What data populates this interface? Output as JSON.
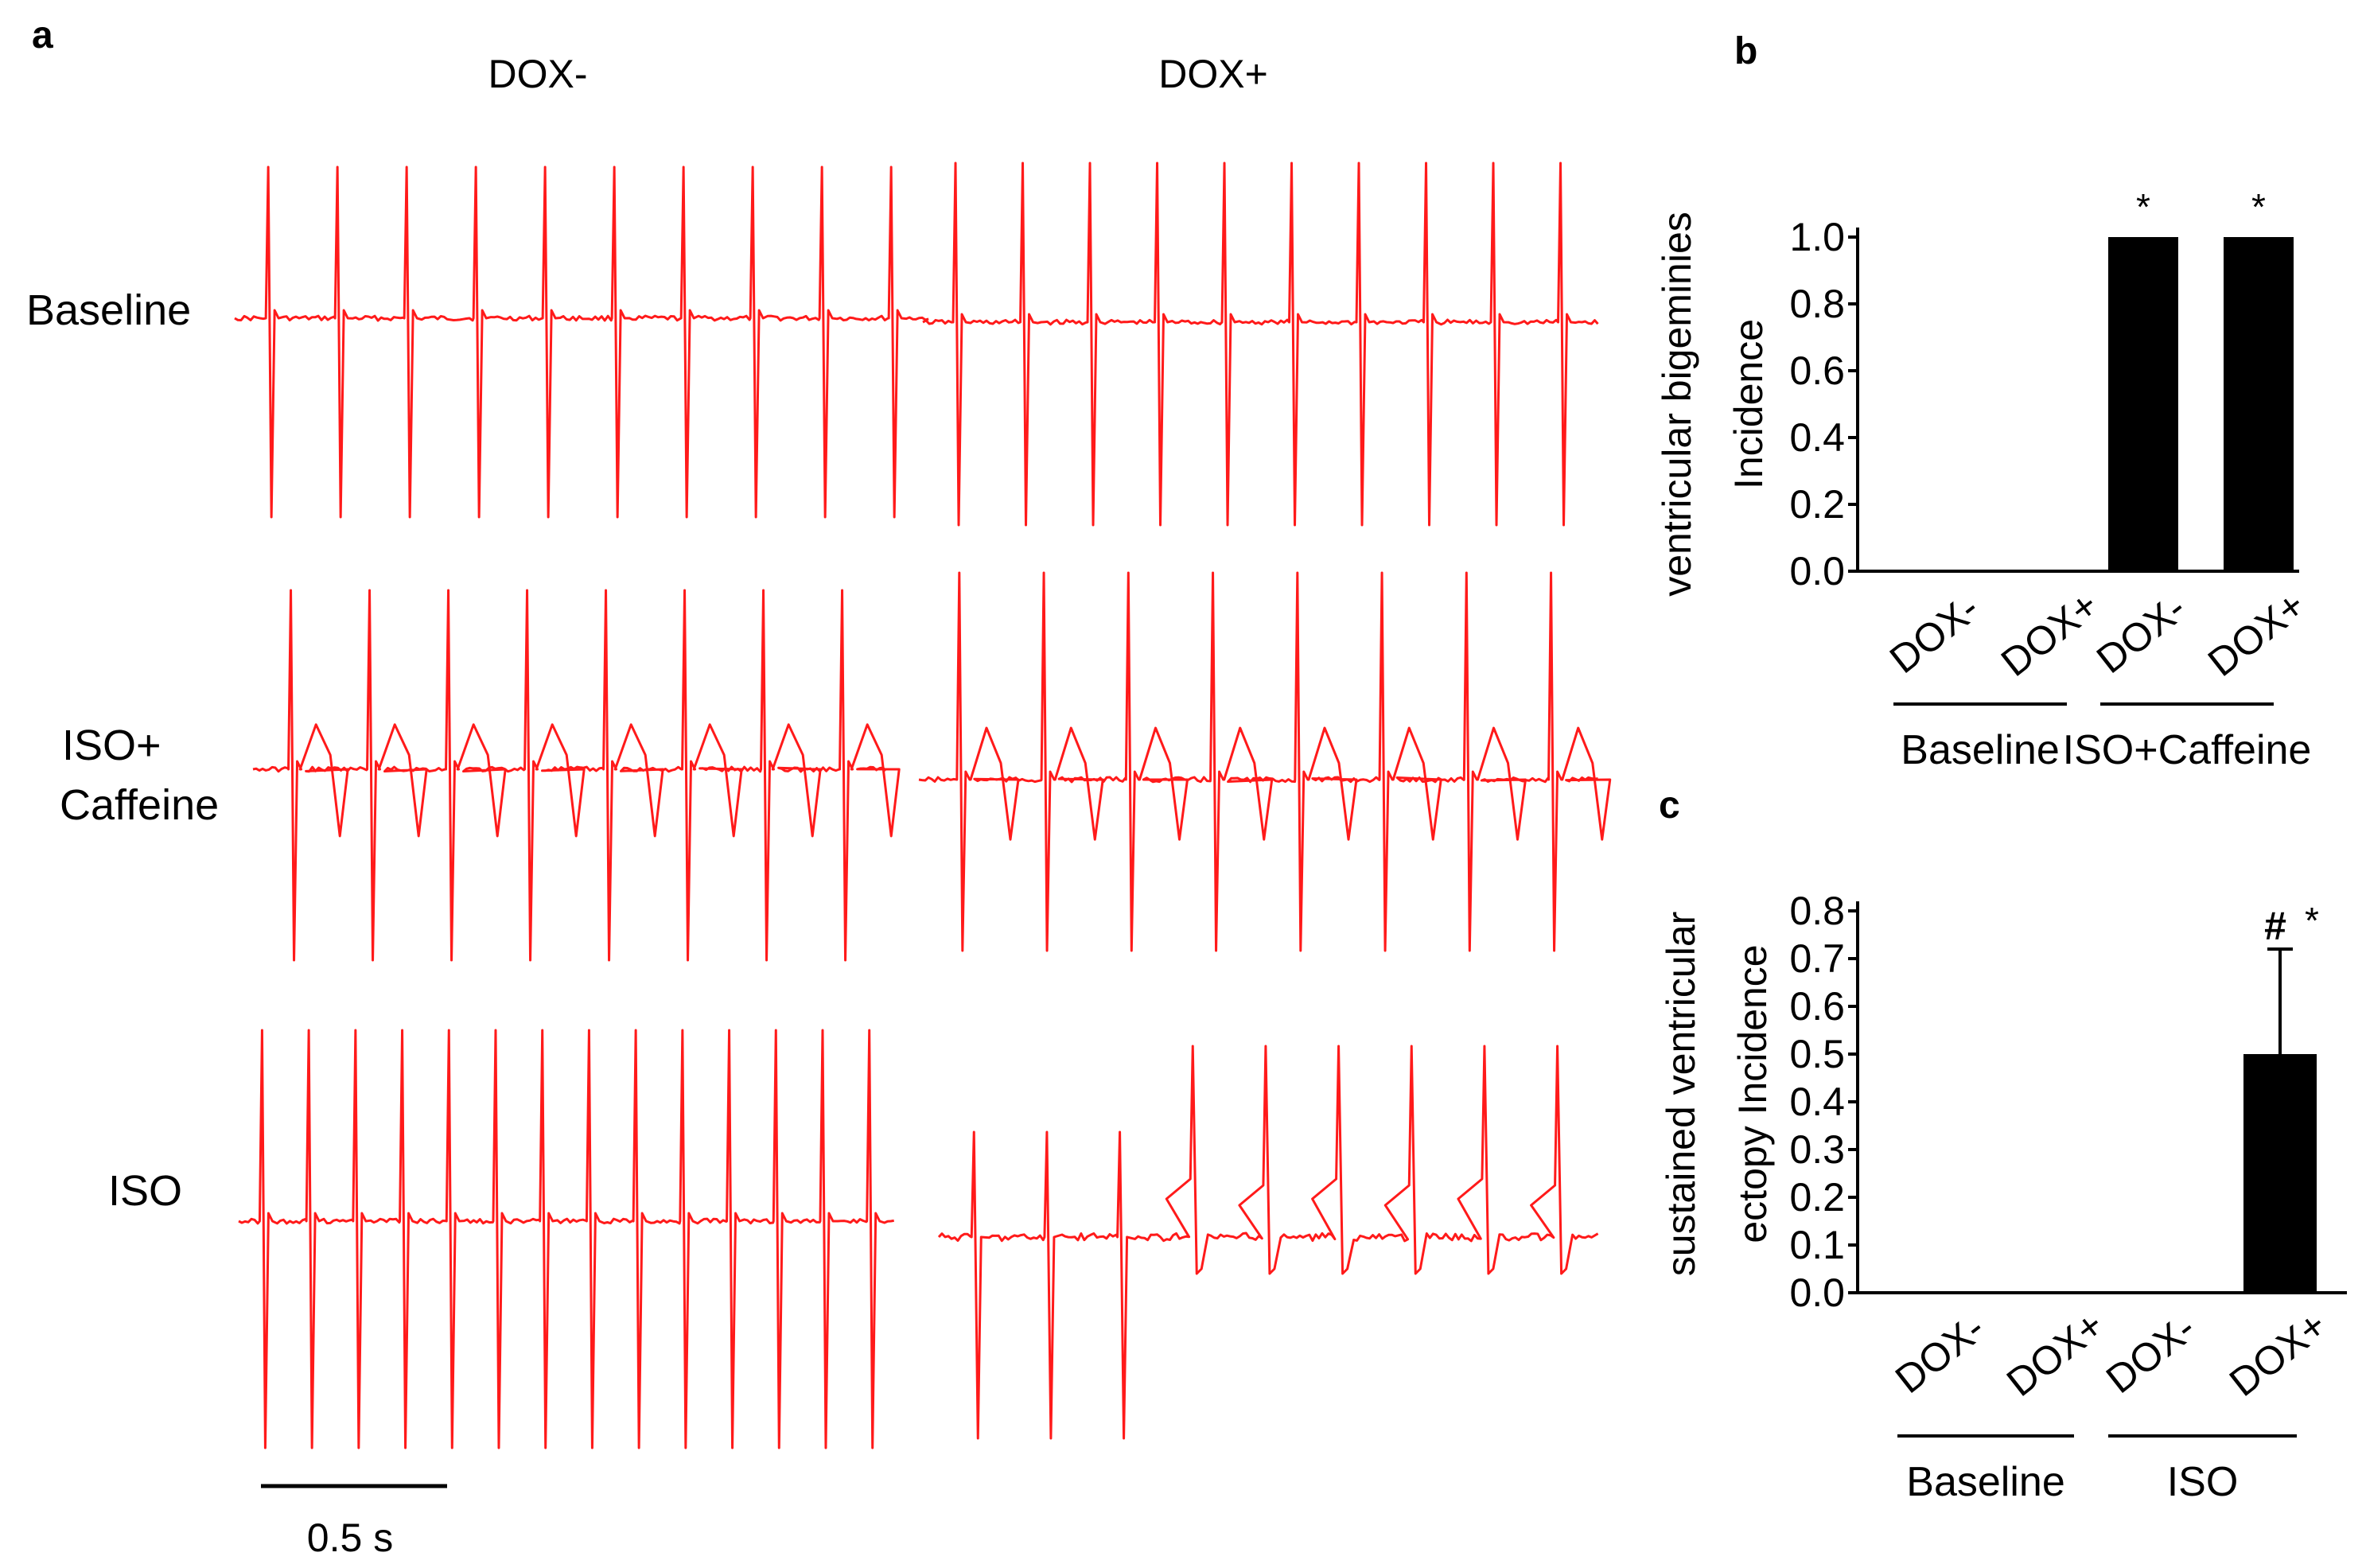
{
  "panel_a": {
    "letter": "a",
    "columns": [
      "DOX-",
      "DOX+"
    ],
    "rows": [
      {
        "label_lines": [
          "Baseline"
        ]
      },
      {
        "label_lines": [
          "ISO+",
          "Caffeine"
        ]
      },
      {
        "label_lines": [
          "ISO"
        ]
      }
    ],
    "scale_bar_label": "0.5 s",
    "trace_color": "#ff1a1a",
    "traces": [
      {
        "id": "baseline-dox-minus",
        "beats_per_window": 10,
        "style": "narrow"
      },
      {
        "id": "baseline-dox-plus",
        "beats_per_window": 10,
        "style": "narrow"
      },
      {
        "id": "iso-caffeine-dox-minus",
        "beats_per_window": 8,
        "style": "bigeminy"
      },
      {
        "id": "iso-caffeine-dox-plus",
        "beats_per_window": 8,
        "style": "bigeminy"
      },
      {
        "id": "iso-dox-minus",
        "beats_per_window": 14,
        "style": "narrow"
      },
      {
        "id": "iso-dox-plus",
        "beats_per_window": 9,
        "style": "ectopy"
      }
    ]
  },
  "chart_data": [
    {
      "panel": "b",
      "type": "bar",
      "title": "",
      "categories": [
        "DOX-",
        "DOX+",
        "DOX-",
        "DOX+"
      ],
      "groups": [
        {
          "label": "Baseline",
          "members": [
            0,
            1
          ]
        },
        {
          "label": "ISO+Caffeine",
          "members": [
            2,
            3
          ]
        }
      ],
      "values": [
        0.0,
        0.0,
        1.0,
        1.0
      ],
      "errors": [
        0,
        0,
        0,
        0
      ],
      "annotations": [
        "",
        "",
        "*",
        "*"
      ],
      "ylabel_lines": [
        "ventricular bigeminies",
        "Incidence"
      ],
      "ylim": [
        0,
        1.0
      ],
      "yticks": [
        "0.0",
        "0.2",
        "0.4",
        "0.6",
        "0.8",
        "1.0"
      ],
      "bar_color": "#000000"
    },
    {
      "panel": "c",
      "type": "bar",
      "title": "",
      "categories": [
        "DOX-",
        "DOX+",
        "DOX-",
        "DOX+"
      ],
      "groups": [
        {
          "label": "Baseline",
          "members": [
            0,
            1
          ]
        },
        {
          "label": "ISO",
          "members": [
            2,
            3
          ]
        }
      ],
      "values": [
        0.0,
        0.0,
        0.0,
        0.5
      ],
      "errors": [
        0,
        0,
        0,
        0.22
      ],
      "annotations": [
        "",
        "",
        "",
        "*"
      ],
      "hash_annotations": [
        "",
        "",
        "",
        "#"
      ],
      "ylabel_lines": [
        "sustained ventricular",
        "ectopy Incidence"
      ],
      "ylim": [
        0,
        0.8
      ],
      "yticks": [
        "0.0",
        "0.1",
        "0.2",
        "0.3",
        "0.4",
        "0.5",
        "0.6",
        "0.7",
        "0.8"
      ],
      "bar_color": "#000000"
    }
  ]
}
